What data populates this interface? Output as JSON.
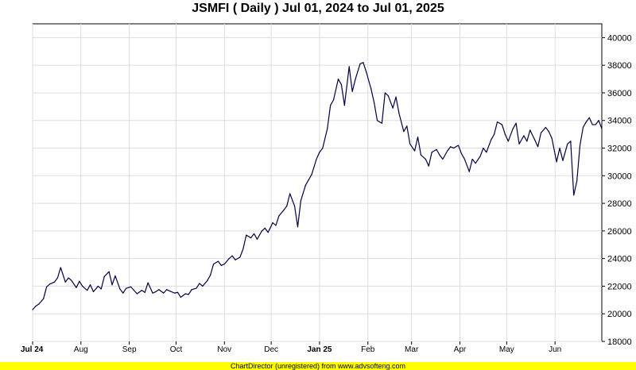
{
  "chart_data": {
    "type": "line",
    "title": "JSMFI ( Daily ) Jul 01, 2024 to Jul 01, 2025",
    "xlabel": "",
    "ylabel": "",
    "x_range": [
      "2024-07-01",
      "2025-07-01"
    ],
    "ylim": [
      18000,
      41000
    ],
    "grid": true,
    "y_axis_side": "right",
    "line_color": "#000040",
    "y_ticks": [
      "18000",
      "20000",
      "22000",
      "24000",
      "26000",
      "28000",
      "30000",
      "32000",
      "34000",
      "36000",
      "38000",
      "40000"
    ],
    "x_ticks": [
      {
        "label": "Jul 24",
        "date": "2024-07-01",
        "bold": true
      },
      {
        "label": "Aug",
        "date": "2024-08-01",
        "bold": false
      },
      {
        "label": "Sep",
        "date": "2024-09-01",
        "bold": false
      },
      {
        "label": "Oct",
        "date": "2024-10-01",
        "bold": false
      },
      {
        "label": "Nov",
        "date": "2024-11-01",
        "bold": false
      },
      {
        "label": "Dec",
        "date": "2024-12-01",
        "bold": false
      },
      {
        "label": "Jan 25",
        "date": "2025-01-01",
        "bold": true
      },
      {
        "label": "Feb",
        "date": "2025-02-01",
        "bold": false
      },
      {
        "label": "Mar",
        "date": "2025-03-01",
        "bold": false
      },
      {
        "label": "Apr",
        "date": "2025-04-01",
        "bold": false
      },
      {
        "label": "May",
        "date": "2025-05-01",
        "bold": false
      },
      {
        "label": "Jun",
        "date": "2025-06-01",
        "bold": false
      }
    ],
    "series": [
      {
        "points": [
          [
            "2024-07-01",
            20300
          ],
          [
            "2024-07-03",
            20550
          ],
          [
            "2024-07-05",
            20700
          ],
          [
            "2024-07-08",
            21100
          ],
          [
            "2024-07-10",
            21950
          ],
          [
            "2024-07-12",
            22150
          ],
          [
            "2024-07-15",
            22300
          ],
          [
            "2024-07-17",
            22600
          ],
          [
            "2024-07-19",
            23350
          ],
          [
            "2024-07-22",
            22300
          ],
          [
            "2024-07-24",
            22600
          ],
          [
            "2024-07-26",
            22400
          ],
          [
            "2024-07-29",
            21900
          ],
          [
            "2024-07-31",
            22350
          ],
          [
            "2024-08-02",
            22000
          ],
          [
            "2024-08-05",
            21700
          ],
          [
            "2024-08-07",
            22100
          ],
          [
            "2024-08-09",
            21600
          ],
          [
            "2024-08-12",
            22000
          ],
          [
            "2024-08-14",
            21800
          ],
          [
            "2024-08-16",
            22700
          ],
          [
            "2024-08-19",
            23050
          ],
          [
            "2024-08-21",
            22100
          ],
          [
            "2024-08-23",
            22750
          ],
          [
            "2024-08-26",
            21800
          ],
          [
            "2024-08-28",
            21500
          ],
          [
            "2024-08-30",
            21850
          ],
          [
            "2024-09-02",
            21950
          ],
          [
            "2024-09-04",
            21700
          ],
          [
            "2024-09-06",
            21450
          ],
          [
            "2024-09-09",
            21700
          ],
          [
            "2024-09-11",
            21550
          ],
          [
            "2024-09-13",
            22250
          ],
          [
            "2024-09-16",
            21500
          ],
          [
            "2024-09-18",
            21600
          ],
          [
            "2024-09-20",
            21750
          ],
          [
            "2024-09-23",
            21500
          ],
          [
            "2024-09-25",
            21750
          ],
          [
            "2024-09-27",
            21650
          ],
          [
            "2024-09-30",
            21500
          ],
          [
            "2024-10-02",
            21550
          ],
          [
            "2024-10-04",
            21200
          ],
          [
            "2024-10-07",
            21450
          ],
          [
            "2024-10-09",
            21400
          ],
          [
            "2024-10-11",
            21750
          ],
          [
            "2024-10-14",
            21850
          ],
          [
            "2024-10-16",
            22200
          ],
          [
            "2024-10-18",
            22000
          ],
          [
            "2024-10-21",
            22400
          ],
          [
            "2024-10-23",
            22800
          ],
          [
            "2024-10-25",
            23600
          ],
          [
            "2024-10-28",
            23800
          ],
          [
            "2024-10-30",
            23500
          ],
          [
            "2024-11-01",
            23600
          ],
          [
            "2024-11-04",
            24000
          ],
          [
            "2024-11-06",
            24200
          ],
          [
            "2024-11-08",
            23900
          ],
          [
            "2024-11-11",
            24100
          ],
          [
            "2024-11-13",
            24700
          ],
          [
            "2024-11-15",
            25700
          ],
          [
            "2024-11-18",
            25500
          ],
          [
            "2024-11-20",
            25800
          ],
          [
            "2024-11-22",
            25400
          ],
          [
            "2024-11-25",
            26000
          ],
          [
            "2024-11-27",
            26200
          ],
          [
            "2024-11-29",
            25900
          ],
          [
            "2024-12-02",
            26600
          ],
          [
            "2024-12-04",
            26400
          ],
          [
            "2024-12-06",
            27100
          ],
          [
            "2024-12-09",
            27500
          ],
          [
            "2024-12-11",
            27800
          ],
          [
            "2024-12-13",
            28700
          ],
          [
            "2024-12-16",
            27800
          ],
          [
            "2024-12-18",
            26300
          ],
          [
            "2024-12-20",
            28200
          ],
          [
            "2024-12-23",
            29300
          ],
          [
            "2024-12-25",
            29700
          ],
          [
            "2024-12-27",
            30100
          ],
          [
            "2024-12-30",
            31200
          ],
          [
            "2025-01-01",
            31700
          ],
          [
            "2025-01-03",
            32000
          ],
          [
            "2025-01-06",
            33400
          ],
          [
            "2025-01-08",
            35100
          ],
          [
            "2025-01-10",
            35500
          ],
          [
            "2025-01-13",
            37000
          ],
          [
            "2025-01-15",
            36600
          ],
          [
            "2025-01-17",
            35100
          ],
          [
            "2025-01-20",
            37900
          ],
          [
            "2025-01-22",
            36100
          ],
          [
            "2025-01-24",
            37000
          ],
          [
            "2025-01-27",
            38100
          ],
          [
            "2025-01-29",
            38200
          ],
          [
            "2025-01-31",
            37500
          ],
          [
            "2025-02-03",
            36300
          ],
          [
            "2025-02-05",
            35300
          ],
          [
            "2025-02-07",
            34000
          ],
          [
            "2025-02-10",
            33800
          ],
          [
            "2025-02-12",
            36000
          ],
          [
            "2025-02-14",
            35800
          ],
          [
            "2025-02-17",
            34900
          ],
          [
            "2025-02-19",
            35700
          ],
          [
            "2025-02-21",
            34500
          ],
          [
            "2025-02-24",
            33200
          ],
          [
            "2025-02-26",
            33600
          ],
          [
            "2025-02-28",
            32300
          ],
          [
            "2025-03-03",
            31800
          ],
          [
            "2025-03-05",
            32800
          ],
          [
            "2025-03-07",
            31500
          ],
          [
            "2025-03-10",
            31200
          ],
          [
            "2025-03-12",
            30700
          ],
          [
            "2025-03-14",
            31700
          ],
          [
            "2025-03-17",
            31900
          ],
          [
            "2025-03-19",
            31500
          ],
          [
            "2025-03-21",
            31200
          ],
          [
            "2025-03-24",
            31800
          ],
          [
            "2025-03-26",
            32100
          ],
          [
            "2025-03-28",
            32000
          ],
          [
            "2025-03-31",
            32200
          ],
          [
            "2025-04-02",
            31600
          ],
          [
            "2025-04-04",
            31200
          ],
          [
            "2025-04-07",
            30300
          ],
          [
            "2025-04-09",
            31200
          ],
          [
            "2025-04-11",
            30900
          ],
          [
            "2025-04-14",
            31400
          ],
          [
            "2025-04-16",
            32000
          ],
          [
            "2025-04-18",
            31700
          ],
          [
            "2025-04-21",
            32600
          ],
          [
            "2025-04-23",
            33000
          ],
          [
            "2025-04-25",
            33900
          ],
          [
            "2025-04-28",
            33700
          ],
          [
            "2025-04-30",
            33000
          ],
          [
            "2025-05-02",
            32500
          ],
          [
            "2025-05-05",
            33400
          ],
          [
            "2025-05-07",
            33800
          ],
          [
            "2025-05-09",
            32300
          ],
          [
            "2025-05-12",
            32900
          ],
          [
            "2025-05-14",
            32500
          ],
          [
            "2025-05-16",
            33300
          ],
          [
            "2025-05-19",
            32600
          ],
          [
            "2025-05-21",
            32100
          ],
          [
            "2025-05-23",
            33100
          ],
          [
            "2025-05-26",
            33500
          ],
          [
            "2025-05-28",
            33200
          ],
          [
            "2025-05-30",
            32700
          ],
          [
            "2025-06-02",
            31000
          ],
          [
            "2025-06-04",
            32000
          ],
          [
            "2025-06-06",
            31100
          ],
          [
            "2025-06-09",
            32300
          ],
          [
            "2025-06-11",
            32500
          ],
          [
            "2025-06-13",
            28600
          ],
          [
            "2025-06-15",
            29600
          ],
          [
            "2025-06-17",
            32200
          ],
          [
            "2025-06-19",
            33500
          ],
          [
            "2025-06-21",
            33900
          ],
          [
            "2025-06-23",
            34200
          ],
          [
            "2025-06-25",
            33700
          ],
          [
            "2025-06-27",
            33700
          ],
          [
            "2025-06-29",
            34000
          ],
          [
            "2025-07-01",
            33400
          ]
        ]
      }
    ]
  },
  "footer": {
    "text": "ChartDirector (unregistered) from www.advsofteng.com",
    "background": "#ffff00"
  }
}
